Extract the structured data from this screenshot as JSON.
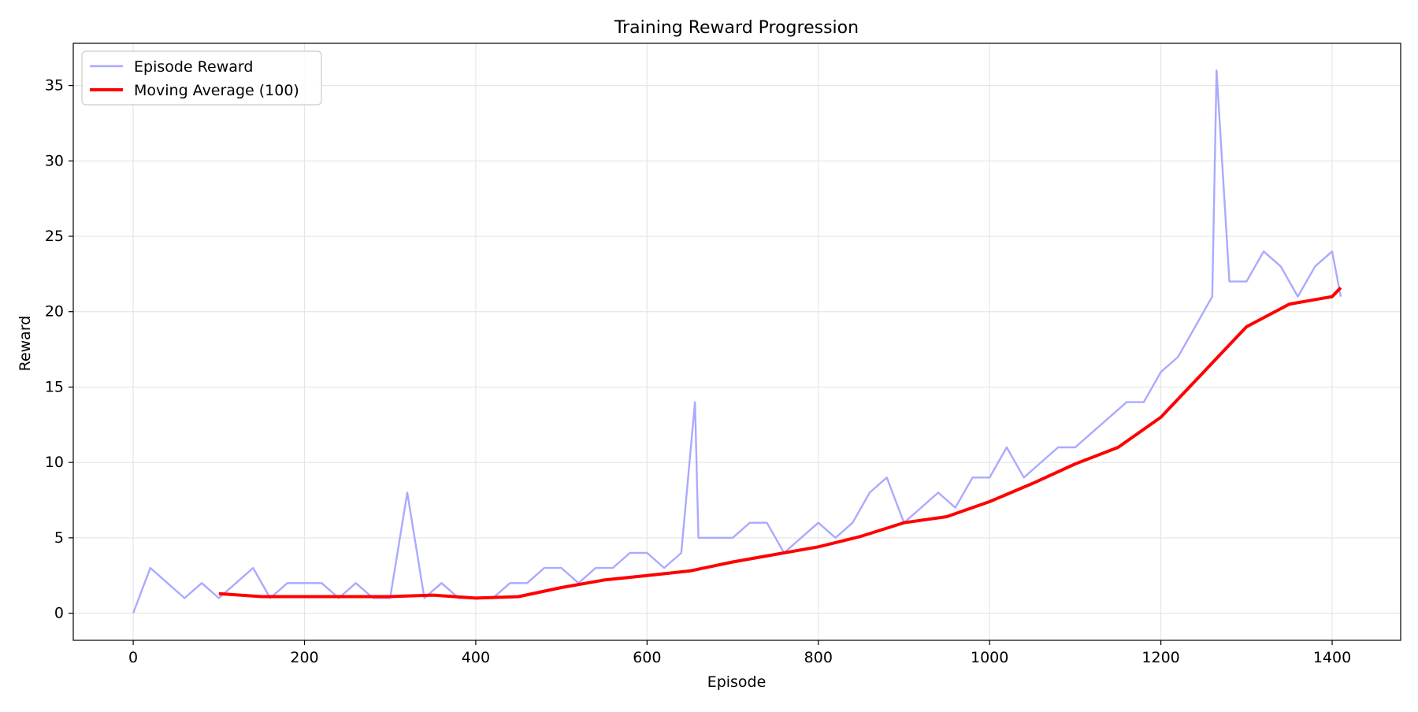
{
  "chart_data": {
    "type": "line",
    "title": "Training Reward Progression",
    "xlabel": "Episode",
    "ylabel": "Reward",
    "xlim": [
      -70,
      1480
    ],
    "ylim": [
      -1.8,
      37.8
    ],
    "xticks": [
      0,
      200,
      400,
      600,
      800,
      1000,
      1200,
      1400
    ],
    "yticks": [
      0,
      5,
      10,
      15,
      20,
      25,
      30,
      35
    ],
    "grid": true,
    "legend_position": "upper left",
    "series": [
      {
        "name": "Episode Reward",
        "color": "#aaaaff",
        "style": "noisy episode-level reward",
        "x": [
          0,
          20,
          40,
          60,
          80,
          100,
          120,
          140,
          160,
          180,
          200,
          220,
          240,
          260,
          280,
          300,
          320,
          340,
          360,
          380,
          400,
          420,
          440,
          460,
          480,
          500,
          520,
          540,
          560,
          580,
          600,
          620,
          640,
          656,
          660,
          680,
          700,
          720,
          740,
          760,
          780,
          800,
          820,
          840,
          860,
          880,
          900,
          920,
          940,
          960,
          980,
          1000,
          1020,
          1040,
          1060,
          1080,
          1100,
          1120,
          1140,
          1160,
          1180,
          1200,
          1220,
          1240,
          1260,
          1265,
          1280,
          1300,
          1320,
          1340,
          1360,
          1380,
          1400,
          1410
        ],
        "values": [
          0,
          3,
          2,
          1,
          2,
          1,
          2,
          3,
          1,
          2,
          2,
          2,
          1,
          2,
          1,
          1,
          8,
          1,
          2,
          1,
          1,
          1,
          2,
          2,
          3,
          3,
          2,
          3,
          3,
          4,
          4,
          3,
          4,
          14,
          5,
          5,
          5,
          6,
          6,
          4,
          5,
          6,
          5,
          6,
          8,
          9,
          6,
          7,
          8,
          7,
          9,
          9,
          11,
          9,
          10,
          11,
          11,
          12,
          13,
          14,
          14,
          16,
          17,
          19,
          21,
          36,
          22,
          22,
          24,
          23,
          21,
          23,
          24,
          21
        ]
      },
      {
        "name": "Moving Average (100)",
        "color": "#ff0000",
        "x": [
          100,
          150,
          200,
          250,
          300,
          350,
          400,
          450,
          500,
          550,
          600,
          650,
          700,
          750,
          800,
          850,
          900,
          950,
          1000,
          1050,
          1100,
          1150,
          1200,
          1250,
          1300,
          1350,
          1400,
          1410
        ],
        "values": [
          1.3,
          1.1,
          1.1,
          1.1,
          1.1,
          1.2,
          1.0,
          1.1,
          1.7,
          2.2,
          2.5,
          2.8,
          3.4,
          3.9,
          4.4,
          5.1,
          6.0,
          6.4,
          7.4,
          8.6,
          9.9,
          11.0,
          13.0,
          16.0,
          19.0,
          20.5,
          21.0,
          21.6
        ]
      }
    ]
  }
}
